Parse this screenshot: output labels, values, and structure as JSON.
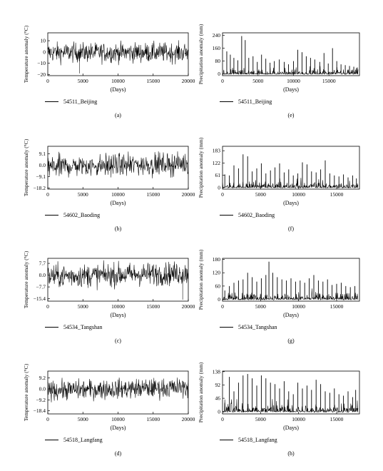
{
  "panels": [
    {
      "column": "temperature",
      "letter": "(a)",
      "legend": "54511_Beijing",
      "ylabel": "Temperature anomaly (°C)",
      "xlabel": "(Days)",
      "yticks": [
        {
          "value": 10,
          "label": "10"
        },
        {
          "value": 0,
          "label": "0"
        },
        {
          "value": -10,
          "label": "−10"
        },
        {
          "value": -20,
          "label": "−20"
        }
      ],
      "xticks": [
        {
          "value": 0,
          "label": "0"
        },
        {
          "value": 5000,
          "label": "5000"
        },
        {
          "value": 10000,
          "label": "10000"
        },
        {
          "value": 15000,
          "label": "15000"
        },
        {
          "value": 20000,
          "label": "20000"
        }
      ]
    },
    {
      "column": "precipitation",
      "letter": "(e)",
      "legend": "54511_Beijing",
      "ylabel": "Precipitation anomaly (mm)",
      "xlabel": "(Days)",
      "yticks": [
        {
          "value": 240,
          "label": "240"
        },
        {
          "value": 160,
          "label": "160"
        },
        {
          "value": 80,
          "label": "80"
        },
        {
          "value": 0,
          "label": "0"
        }
      ],
      "xticks": [
        {
          "value": 0,
          "label": "0"
        },
        {
          "value": 5000,
          "label": "5000"
        },
        {
          "value": 10000,
          "label": "10000"
        },
        {
          "value": 15000,
          "label": "15000"
        }
      ]
    },
    {
      "column": "temperature",
      "letter": "(b)",
      "legend": "54602_Baoding",
      "ylabel": "Temperature anomaly (°C)",
      "xlabel": "(Days)",
      "yticks": [
        {
          "value": 9.1,
          "label": "9.1"
        },
        {
          "value": 0,
          "label": "0.0"
        },
        {
          "value": -9.1,
          "label": "−9.1"
        },
        {
          "value": -18.2,
          "label": "−18.2"
        }
      ],
      "xticks": [
        {
          "value": 0,
          "label": "0"
        },
        {
          "value": 5000,
          "label": "5000"
        },
        {
          "value": 10000,
          "label": "10000"
        },
        {
          "value": 15000,
          "label": "15000"
        },
        {
          "value": 20000,
          "label": "20000"
        }
      ]
    },
    {
      "column": "precipitation",
      "letter": "(f)",
      "legend": "54602_Baoding",
      "ylabel": "Precipitation anomaly (mm)",
      "xlabel": "(Days)",
      "yticks": [
        {
          "value": 183,
          "label": "183"
        },
        {
          "value": 122,
          "label": "122"
        },
        {
          "value": 61,
          "label": "61"
        },
        {
          "value": 0,
          "label": "0"
        }
      ],
      "xticks": [
        {
          "value": 0,
          "label": "0"
        },
        {
          "value": 5000,
          "label": "5000"
        },
        {
          "value": 10000,
          "label": "10000"
        },
        {
          "value": 15000,
          "label": "15000"
        }
      ]
    },
    {
      "column": "temperature",
      "letter": "(c)",
      "legend": "54534_Tangshan",
      "ylabel": "Temperature anomaly (°C)",
      "xlabel": "(Days)",
      "yticks": [
        {
          "value": 7.7,
          "label": "7.7"
        },
        {
          "value": 0,
          "label": "0.0"
        },
        {
          "value": -7.7,
          "label": "−7.7"
        },
        {
          "value": -15.4,
          "label": "−15.4"
        }
      ],
      "xticks": [
        {
          "value": 0,
          "label": "0"
        },
        {
          "value": 5000,
          "label": "5000"
        },
        {
          "value": 10000,
          "label": "10000"
        },
        {
          "value": 15000,
          "label": "15000"
        },
        {
          "value": 20000,
          "label": "20000"
        }
      ]
    },
    {
      "column": "precipitation",
      "letter": "(g)",
      "legend": "54534_Tangshan",
      "ylabel": "Precipitation anomaly (mm)",
      "xlabel": "(Days)",
      "yticks": [
        {
          "value": 180,
          "label": "180"
        },
        {
          "value": 120,
          "label": "120"
        },
        {
          "value": 60,
          "label": "60"
        },
        {
          "value": 0,
          "label": "0"
        }
      ],
      "xticks": [
        {
          "value": 0,
          "label": "0"
        },
        {
          "value": 5000,
          "label": "5000"
        },
        {
          "value": 10000,
          "label": "10000"
        },
        {
          "value": 15000,
          "label": "15000"
        }
      ]
    },
    {
      "column": "temperature",
      "letter": "(d)",
      "legend": "54518_Langfang",
      "ylabel": "Temperature anomaly (°C)",
      "xlabel": "(Days)",
      "yticks": [
        {
          "value": 9.2,
          "label": "9.2"
        },
        {
          "value": 0,
          "label": "0.0"
        },
        {
          "value": -9.2,
          "label": "−9.2"
        },
        {
          "value": -18.4,
          "label": "−18.4"
        }
      ],
      "xticks": [
        {
          "value": 0,
          "label": "0"
        },
        {
          "value": 5000,
          "label": "5000"
        },
        {
          "value": 10000,
          "label": "10000"
        },
        {
          "value": 15000,
          "label": "15000"
        },
        {
          "value": 20000,
          "label": "20000"
        }
      ]
    },
    {
      "column": "precipitation",
      "letter": "(h)",
      "legend": "54518_Langfang",
      "ylabel": "Precipitation anomaly (mm)",
      "xlabel": "(Days)",
      "yticks": [
        {
          "value": 138,
          "label": "138"
        },
        {
          "value": 92,
          "label": "92"
        },
        {
          "value": 46,
          "label": "46"
        },
        {
          "value": 0,
          "label": "0"
        }
      ],
      "xticks": [
        {
          "value": 0,
          "label": "0"
        },
        {
          "value": 5000,
          "label": "5000"
        },
        {
          "value": 10000,
          "label": "10000"
        },
        {
          "value": 15000,
          "label": "15000"
        }
      ]
    }
  ],
  "chart_data": [
    {
      "type": "line",
      "panel": "(a)",
      "series_label": "54511_Beijing",
      "ylabel": "Temperature anomaly (°C)",
      "xlabel": "(Days)",
      "xlim": [
        0,
        20000
      ],
      "ylim": [
        -21,
        17
      ],
      "y_band_approx": [
        -10,
        9
      ],
      "y_min_spike": {
        "x": 4500,
        "y": -19
      },
      "trend": "roughly stationary"
    },
    {
      "type": "line",
      "panel": "(e)",
      "series_label": "54511_Beijing",
      "ylabel": "Precipitation anomaly (mm)",
      "xlabel": "(Days)",
      "xlim": [
        0,
        19300
      ],
      "ylim": [
        -10,
        255
      ],
      "spikes": [
        {
          "x": 600,
          "y": 140
        },
        {
          "x": 1100,
          "y": 120
        },
        {
          "x": 1600,
          "y": 100
        },
        {
          "x": 2150,
          "y": 85
        },
        {
          "x": 2700,
          "y": 235
        },
        {
          "x": 3200,
          "y": 210
        },
        {
          "x": 3700,
          "y": 100
        },
        {
          "x": 4300,
          "y": 110
        },
        {
          "x": 4900,
          "y": 75
        },
        {
          "x": 5500,
          "y": 120
        },
        {
          "x": 6100,
          "y": 95
        },
        {
          "x": 6700,
          "y": 70
        },
        {
          "x": 7300,
          "y": 80
        },
        {
          "x": 8000,
          "y": 90
        },
        {
          "x": 8700,
          "y": 75
        },
        {
          "x": 9300,
          "y": 60
        },
        {
          "x": 10000,
          "y": 80
        },
        {
          "x": 10600,
          "y": 150
        },
        {
          "x": 11200,
          "y": 135
        },
        {
          "x": 11800,
          "y": 110
        },
        {
          "x": 12400,
          "y": 100
        },
        {
          "x": 13000,
          "y": 90
        },
        {
          "x": 13700,
          "y": 75
        },
        {
          "x": 14300,
          "y": 130
        },
        {
          "x": 14900,
          "y": 65
        },
        {
          "x": 15500,
          "y": 160
        },
        {
          "x": 16100,
          "y": 80
        },
        {
          "x": 16700,
          "y": 60
        },
        {
          "x": 17300,
          "y": 55
        },
        {
          "x": 17900,
          "y": 50
        },
        {
          "x": 18500,
          "y": 45
        },
        {
          "x": 19000,
          "y": 40
        }
      ]
    },
    {
      "type": "line",
      "panel": "(b)",
      "series_label": "54602_Baoding",
      "ylabel": "Temperature anomaly (°C)",
      "xlabel": "(Days)",
      "xlim": [
        0,
        20000
      ],
      "ylim": [
        -19,
        15
      ],
      "y_band_approx": [
        -9.5,
        9.5
      ],
      "trend": "slight upward"
    },
    {
      "type": "line",
      "panel": "(f)",
      "series_label": "54602_Baoding",
      "ylabel": "Precipitation anomaly (mm)",
      "xlabel": "(Days)",
      "xlim": [
        0,
        18000
      ],
      "ylim": [
        -8,
        205
      ],
      "spikes": [
        {
          "x": 300,
          "y": 65
        },
        {
          "x": 900,
          "y": 60
        },
        {
          "x": 1500,
          "y": 110
        },
        {
          "x": 2100,
          "y": 95
        },
        {
          "x": 2700,
          "y": 165
        },
        {
          "x": 3300,
          "y": 155
        },
        {
          "x": 3900,
          "y": 80
        },
        {
          "x": 4500,
          "y": 95
        },
        {
          "x": 5100,
          "y": 120
        },
        {
          "x": 5700,
          "y": 70
        },
        {
          "x": 6300,
          "y": 85
        },
        {
          "x": 6900,
          "y": 100
        },
        {
          "x": 7500,
          "y": 120
        },
        {
          "x": 8100,
          "y": 75
        },
        {
          "x": 8700,
          "y": 90
        },
        {
          "x": 9300,
          "y": 60
        },
        {
          "x": 9900,
          "y": 70
        },
        {
          "x": 10500,
          "y": 125
        },
        {
          "x": 11100,
          "y": 115
        },
        {
          "x": 11700,
          "y": 80
        },
        {
          "x": 12300,
          "y": 75
        },
        {
          "x": 12900,
          "y": 90
        },
        {
          "x": 13500,
          "y": 135
        },
        {
          "x": 14100,
          "y": 70
        },
        {
          "x": 14700,
          "y": 60
        },
        {
          "x": 15300,
          "y": 55
        },
        {
          "x": 15900,
          "y": 65
        },
        {
          "x": 16500,
          "y": 50
        },
        {
          "x": 17100,
          "y": 60
        },
        {
          "x": 17600,
          "y": 45
        }
      ]
    },
    {
      "type": "line",
      "panel": "(c)",
      "series_label": "54534_Tangshan",
      "ylabel": "Temperature anomaly (°C)",
      "xlabel": "(Days)",
      "xlim": [
        0,
        20000
      ],
      "ylim": [
        -17,
        11
      ],
      "y_band_approx": [
        -8,
        8.5
      ],
      "y_min_spike": {
        "x": 19200,
        "y": -16
      },
      "trend": "slight upward"
    },
    {
      "type": "line",
      "panel": "(g)",
      "series_label": "54534_Tangshan",
      "ylabel": "Precipitation anomaly (mm)",
      "xlabel": "(Days)",
      "xlim": [
        0,
        18000
      ],
      "ylim": [
        -8,
        185
      ],
      "spikes": [
        {
          "x": 300,
          "y": 40
        },
        {
          "x": 900,
          "y": 60
        },
        {
          "x": 1500,
          "y": 75
        },
        {
          "x": 2100,
          "y": 85
        },
        {
          "x": 2700,
          "y": 90
        },
        {
          "x": 3300,
          "y": 120
        },
        {
          "x": 3900,
          "y": 100
        },
        {
          "x": 4500,
          "y": 80
        },
        {
          "x": 5100,
          "y": 95
        },
        {
          "x": 5700,
          "y": 110
        },
        {
          "x": 6100,
          "y": 170
        },
        {
          "x": 6600,
          "y": 120
        },
        {
          "x": 7200,
          "y": 100
        },
        {
          "x": 7800,
          "y": 90
        },
        {
          "x": 8400,
          "y": 85
        },
        {
          "x": 9000,
          "y": 95
        },
        {
          "x": 9600,
          "y": 80
        },
        {
          "x": 10200,
          "y": 85
        },
        {
          "x": 10800,
          "y": 75
        },
        {
          "x": 11400,
          "y": 95
        },
        {
          "x": 12000,
          "y": 110
        },
        {
          "x": 12600,
          "y": 85
        },
        {
          "x": 13200,
          "y": 80
        },
        {
          "x": 13800,
          "y": 90
        },
        {
          "x": 14400,
          "y": 65
        },
        {
          "x": 15000,
          "y": 70
        },
        {
          "x": 15600,
          "y": 75
        },
        {
          "x": 16200,
          "y": 60
        },
        {
          "x": 16800,
          "y": 55
        },
        {
          "x": 17400,
          "y": 60
        }
      ]
    },
    {
      "type": "line",
      "panel": "(d)",
      "series_label": "54518_Langfang",
      "ylabel": "Temperature anomaly (°C)",
      "xlabel": "(Days)",
      "xlim": [
        0,
        20000
      ],
      "ylim": [
        -21,
        15
      ],
      "y_band_approx": [
        -9,
        9
      ],
      "trend": "slight upward"
    },
    {
      "type": "line",
      "panel": "(h)",
      "series_label": "54518_Langfang",
      "ylabel": "Precipitation anomaly (mm)",
      "xlabel": "(Days)",
      "xlim": [
        0,
        18000
      ],
      "ylim": [
        -8,
        140
      ],
      "spikes": [
        {
          "x": 300,
          "y": 30
        },
        {
          "x": 900,
          "y": 120
        },
        {
          "x": 1500,
          "y": 70
        },
        {
          "x": 2100,
          "y": 100
        },
        {
          "x": 2700,
          "y": 125
        },
        {
          "x": 3300,
          "y": 130
        },
        {
          "x": 3900,
          "y": 115
        },
        {
          "x": 4500,
          "y": 90
        },
        {
          "x": 5100,
          "y": 125
        },
        {
          "x": 5700,
          "y": 115
        },
        {
          "x": 6300,
          "y": 100
        },
        {
          "x": 6900,
          "y": 95
        },
        {
          "x": 7500,
          "y": 80
        },
        {
          "x": 8100,
          "y": 105
        },
        {
          "x": 8700,
          "y": 70
        },
        {
          "x": 9300,
          "y": 60
        },
        {
          "x": 9900,
          "y": 100
        },
        {
          "x": 10500,
          "y": 80
        },
        {
          "x": 11100,
          "y": 90
        },
        {
          "x": 11700,
          "y": 75
        },
        {
          "x": 12300,
          "y": 110
        },
        {
          "x": 12900,
          "y": 95
        },
        {
          "x": 13500,
          "y": 70
        },
        {
          "x": 14100,
          "y": 65
        },
        {
          "x": 14700,
          "y": 80
        },
        {
          "x": 15300,
          "y": 60
        },
        {
          "x": 15900,
          "y": 55
        },
        {
          "x": 16500,
          "y": 70
        },
        {
          "x": 17100,
          "y": 50
        },
        {
          "x": 17500,
          "y": 75
        }
      ]
    }
  ]
}
